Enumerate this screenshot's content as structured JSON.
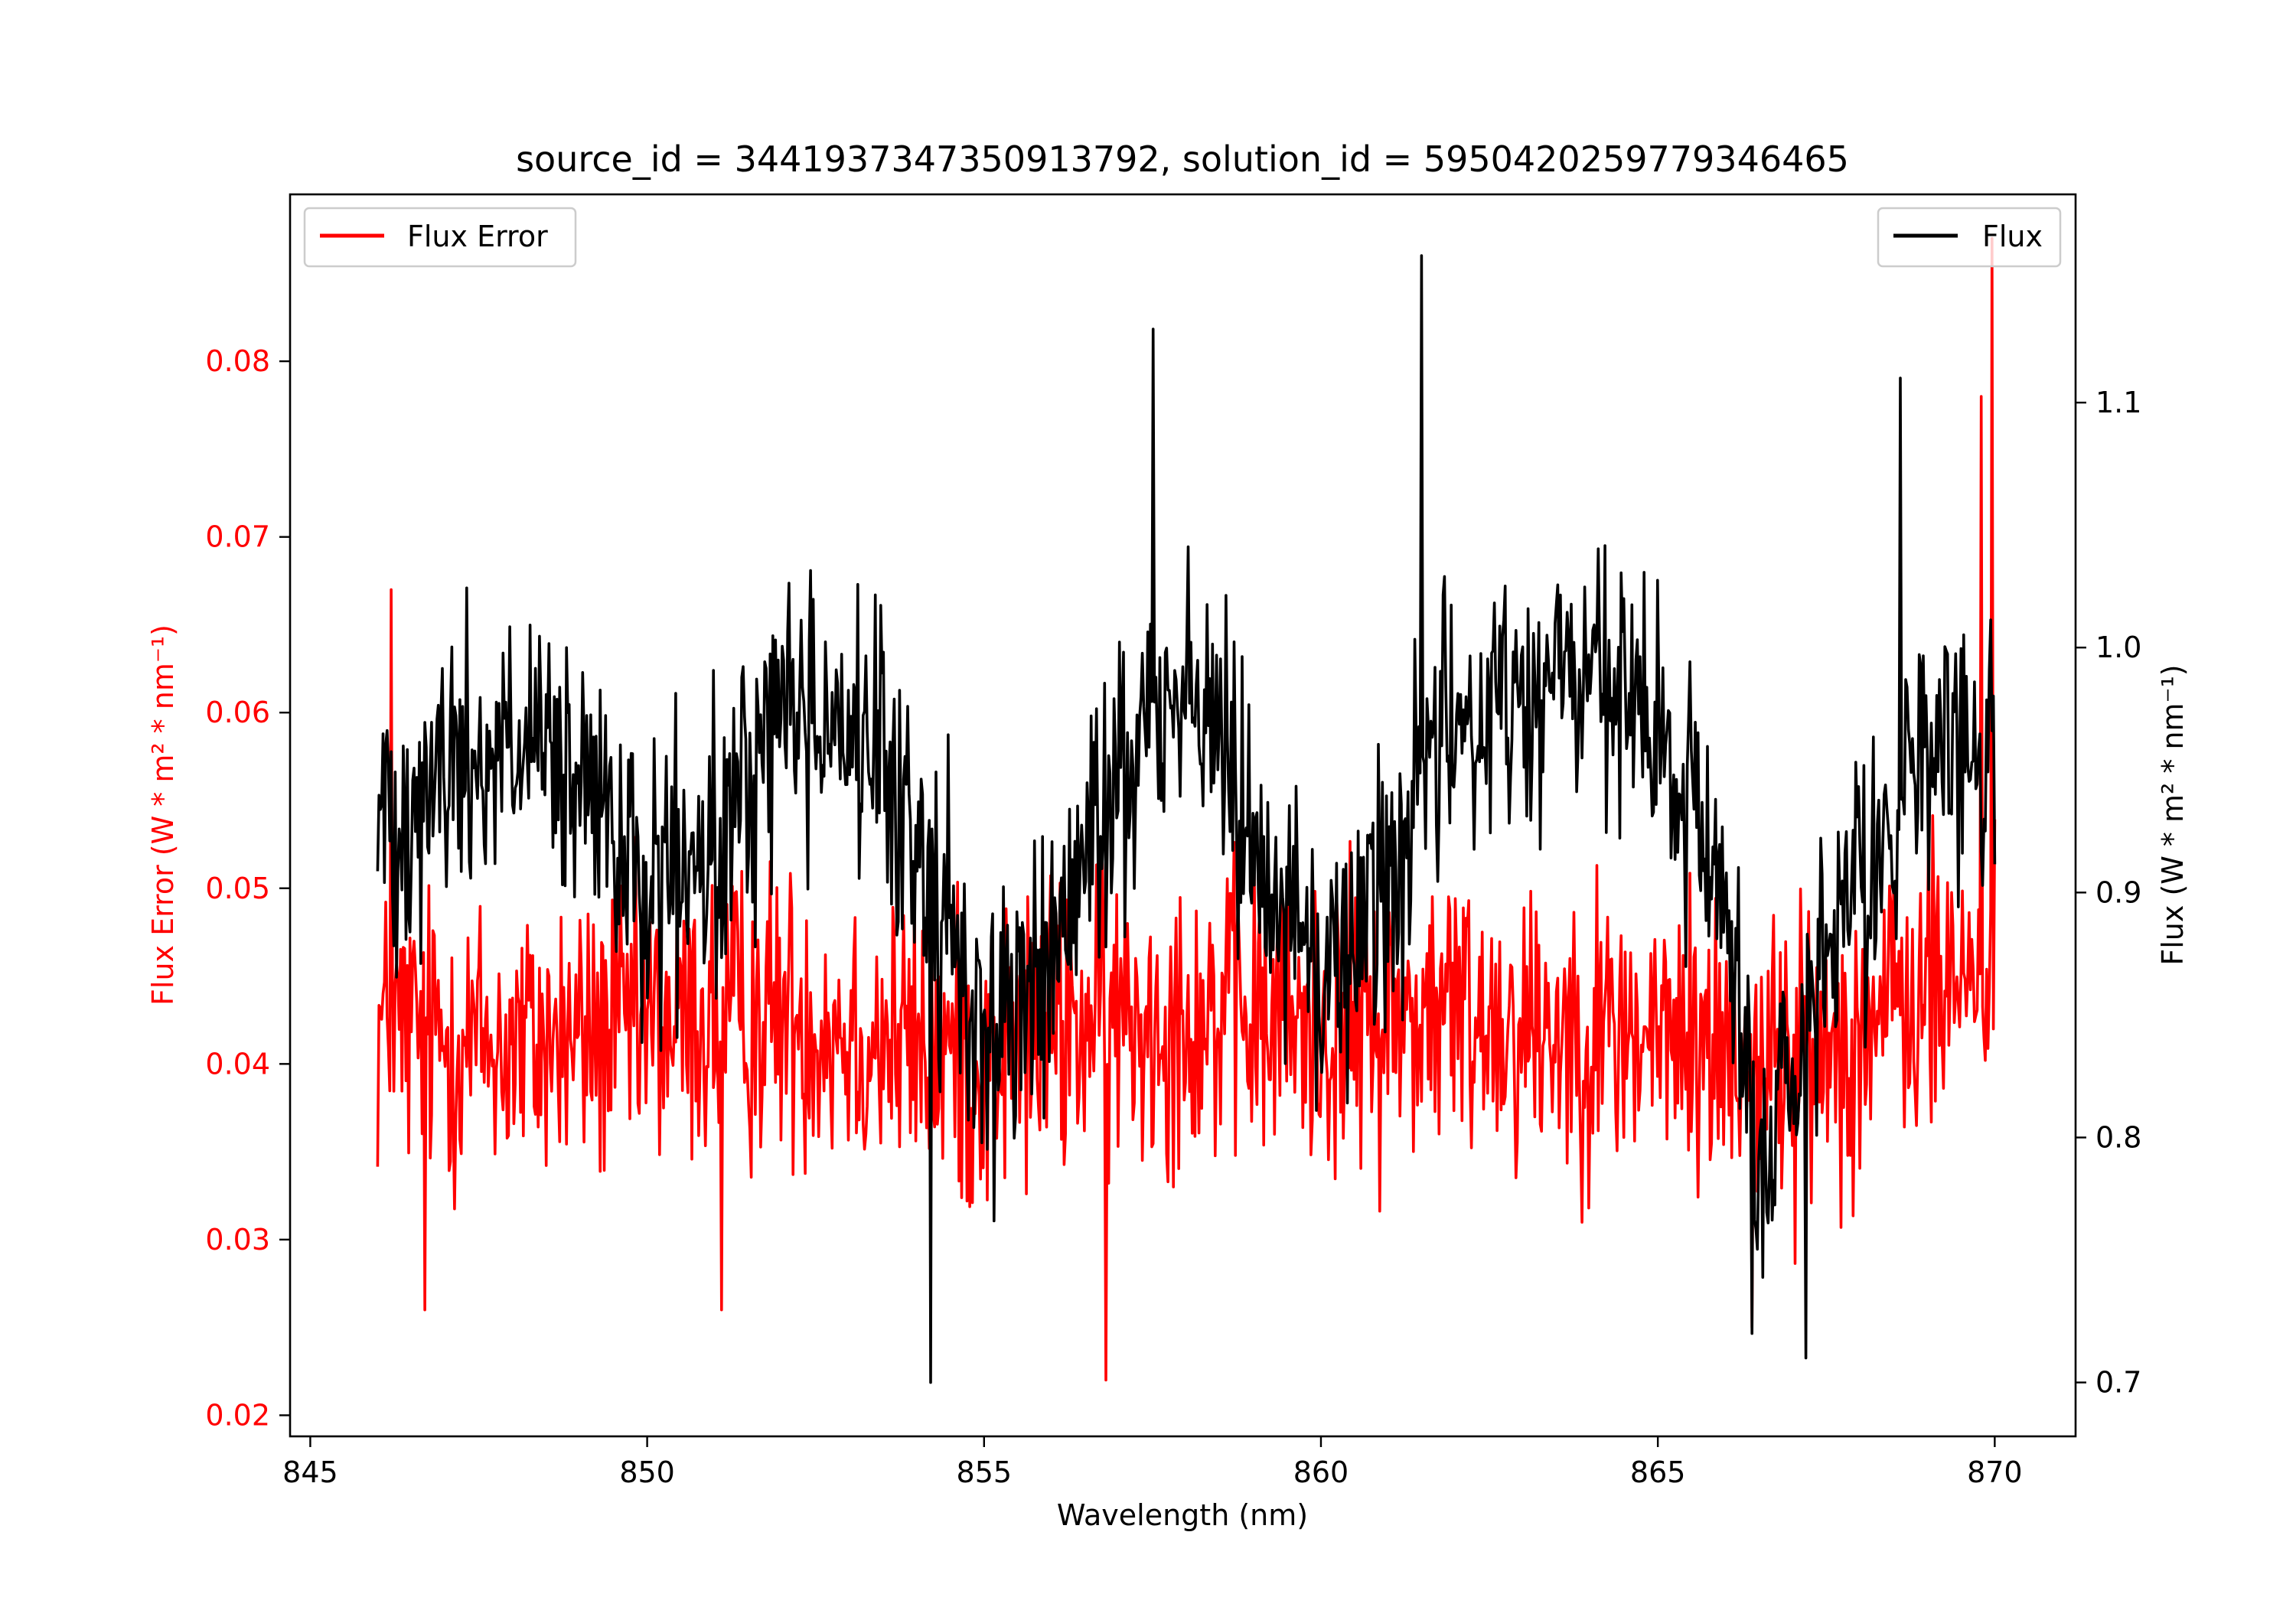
{
  "chart_data": {
    "type": "line",
    "title": "source_id = 3441937347350913792, solution_id = 5950420259779346465",
    "xlabel": "Wavelength (nm)",
    "ylabel_left": "Flux Error (W * m² * nm⁻¹)",
    "ylabel_right": "Flux (W * m² * nm⁻¹)",
    "xlim": [
      844.7,
      871.2
    ],
    "ylim_left": [
      0.0188,
      0.0895
    ],
    "ylim_right": [
      0.678,
      1.185
    ],
    "x_ticks": [
      845,
      850,
      855,
      860,
      865,
      870
    ],
    "x_tick_labels": [
      "845",
      "850",
      "855",
      "860",
      "865",
      "870"
    ],
    "y_left_ticks": [
      0.02,
      0.03,
      0.04,
      0.05,
      0.06,
      0.07,
      0.08
    ],
    "y_left_tick_labels": [
      "0.02",
      "0.03",
      "0.04",
      "0.05",
      "0.06",
      "0.07",
      "0.08"
    ],
    "y_right_ticks": [
      0.7,
      0.8,
      0.9,
      1.0,
      1.1
    ],
    "y_right_tick_labels": [
      "0.7",
      "0.8",
      "0.9",
      "1.0",
      "1.1"
    ],
    "grid": false,
    "x_range": [
      846.0,
      870.0
    ],
    "n_points": 1200,
    "series": [
      {
        "name": "Flux Error",
        "axis": "left",
        "color": "#ff0000",
        "legend_position": "upper-left",
        "envelope_x": [
          846,
          848,
          850,
          852,
          854,
          855,
          856,
          858,
          860,
          862,
          864,
          866,
          867,
          868,
          869,
          870
        ],
        "envelope_mean": [
          0.042,
          0.041,
          0.042,
          0.043,
          0.041,
          0.04,
          0.042,
          0.043,
          0.042,
          0.043,
          0.042,
          0.041,
          0.04,
          0.042,
          0.044,
          0.046
        ],
        "noise_amplitude": 0.008,
        "extremes": [
          {
            "x": 846.2,
            "y": 0.067
          },
          {
            "x": 846.7,
            "y": 0.026
          },
          {
            "x": 851.1,
            "y": 0.026
          },
          {
            "x": 856.8,
            "y": 0.022
          },
          {
            "x": 866.4,
            "y": 0.025
          },
          {
            "x": 869.8,
            "y": 0.078
          },
          {
            "x": 869.95,
            "y": 0.087
          }
        ]
      },
      {
        "name": "Flux",
        "axis": "right",
        "color": "#000000",
        "legend_position": "upper-right",
        "envelope_x": [
          846,
          847,
          848,
          849,
          850,
          851,
          852,
          853,
          854,
          855,
          856,
          857,
          858,
          859,
          860,
          861,
          862,
          863,
          864,
          865,
          866,
          866.5,
          867,
          868,
          869,
          870
        ],
        "envelope_mean": [
          0.93,
          0.95,
          0.96,
          0.94,
          0.9,
          0.91,
          0.98,
          0.97,
          0.92,
          0.84,
          0.87,
          0.95,
          0.99,
          0.93,
          0.86,
          0.91,
          0.97,
          0.98,
          0.99,
          0.96,
          0.9,
          0.79,
          0.82,
          0.9,
          0.96,
          0.95
        ],
        "noise_amplitude": 0.055,
        "extremes": [
          {
            "x": 854.2,
            "y": 0.7
          },
          {
            "x": 857.5,
            "y": 1.13
          },
          {
            "x": 861.5,
            "y": 1.16
          },
          {
            "x": 866.4,
            "y": 0.72
          },
          {
            "x": 867.2,
            "y": 0.71
          },
          {
            "x": 868.6,
            "y": 1.11
          }
        ]
      }
    ]
  }
}
